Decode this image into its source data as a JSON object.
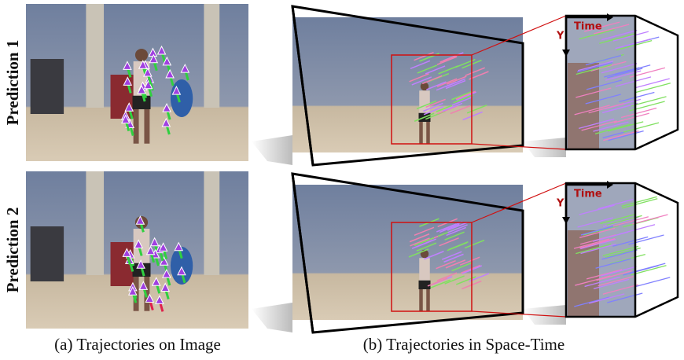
{
  "rows": [
    {
      "label": "Prediction 1",
      "time_label": "Time",
      "y_label": "Y"
    },
    {
      "label": "Prediction 2",
      "time_label": "Time",
      "y_label": "Y"
    }
  ],
  "captions": [
    "(a) Trajectories on Image",
    "(b) Trajectories in Space-Time"
  ]
}
